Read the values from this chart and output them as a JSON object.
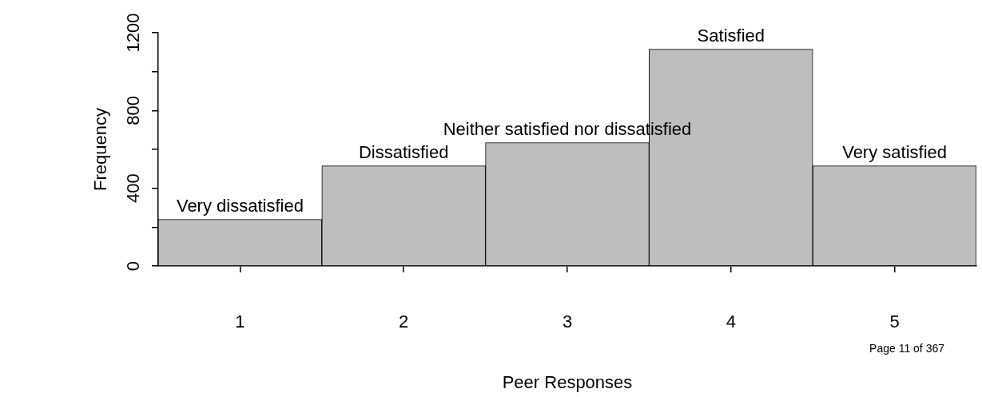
{
  "chart_data": {
    "type": "histogram",
    "xlabel": "Peer Responses",
    "ylabel": "Frequency",
    "bins": [
      0.5,
      1.5,
      2.5,
      3.5,
      4.5,
      5.5
    ],
    "values": [
      240,
      515,
      635,
      1115,
      515
    ],
    "color": "#bebebe",
    "xlim": [
      0.5,
      5.5
    ],
    "xticks": [
      1,
      2,
      3,
      4,
      5
    ],
    "ylim": [
      0,
      1200
    ],
    "yticks": [
      0,
      {
        "value": 200,
        "label": null
      },
      400,
      {
        "value": 600,
        "label": null
      },
      800,
      {
        "value": 1000,
        "label": null
      },
      1200
    ],
    "annotations": [
      {
        "text": "Very dissatisfied",
        "x": 1,
        "y": 240
      },
      {
        "text": "Dissatisfied",
        "x": 2,
        "y": 515
      },
      {
        "text": "Neither satisfied nor dissatisfied",
        "x": 3,
        "y": 635
      },
      {
        "text": "Satisfied",
        "x": 4,
        "y": 1115
      },
      {
        "text": "Very satisfied",
        "x": 5,
        "y": 515
      },
      "Page 11 of 367"
    ]
  }
}
